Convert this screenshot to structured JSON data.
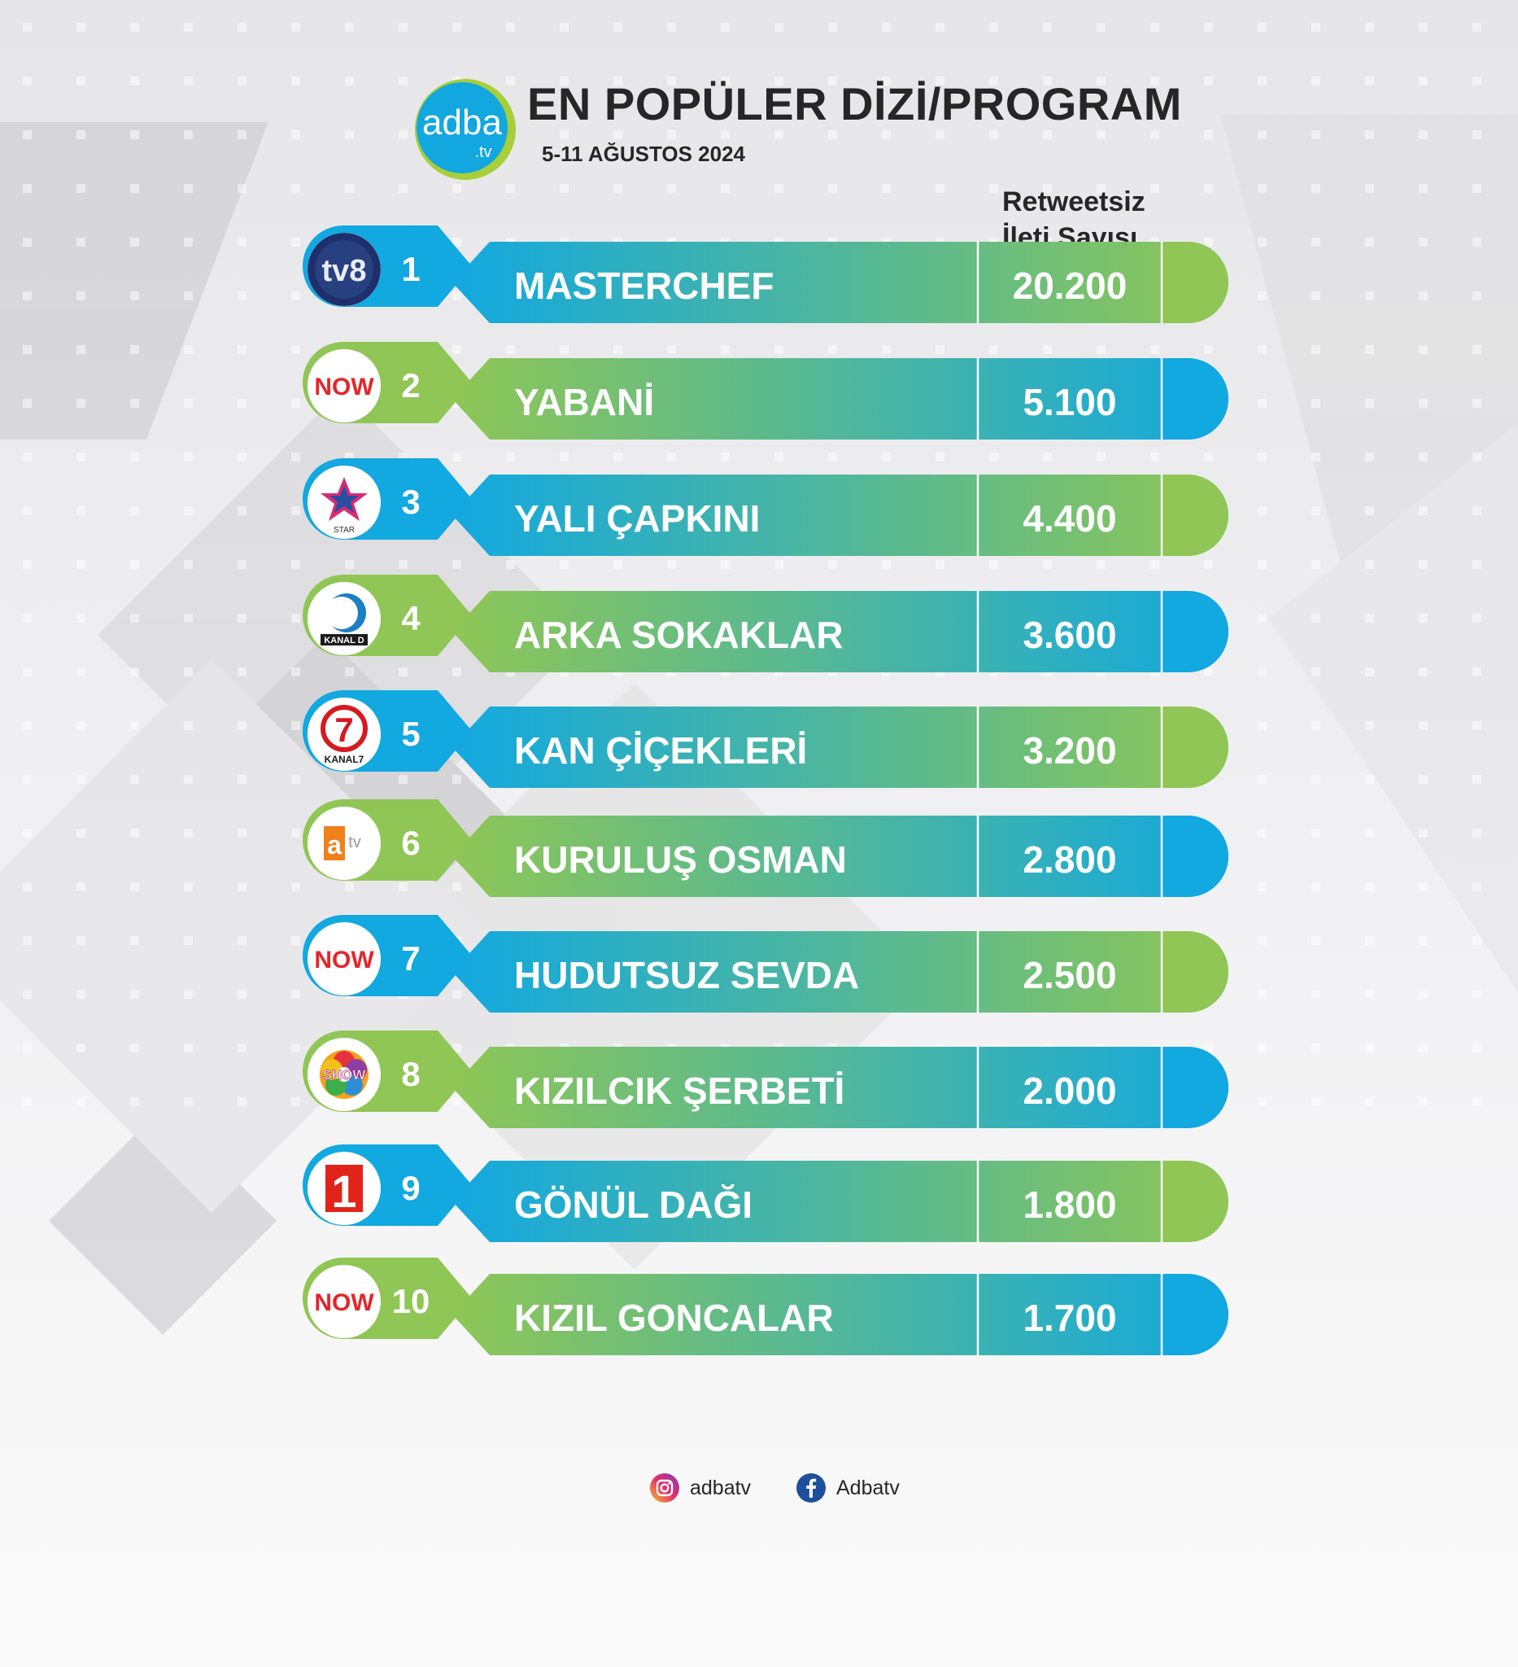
{
  "header": {
    "brand": "adba",
    "brand_suffix": ".tv",
    "title": "EN POPÜLER DİZİ/PROGRAM",
    "date": "5-11 AĞUSTOS 2024",
    "column_label_line1": "Retweetsiz",
    "column_label_line2": "İleti Sayısı"
  },
  "colors": {
    "blue": "#12a8e0",
    "green": "#8fc655",
    "brand_ring": "#a6cf3a"
  },
  "chart_data": {
    "type": "table",
    "title": "EN POPÜLER DİZİ/PROGRAM",
    "subtitle": "5-11 AĞUSTOS 2024",
    "columns": [
      "Retweetsiz İleti Sayısı"
    ],
    "rows": [
      {
        "rank": "1",
        "channel_logo": "tv8-logo",
        "channel_text": "TV8",
        "program": "MASTERCHEF",
        "value_label": "20.200",
        "value": 20200
      },
      {
        "rank": "2",
        "channel_logo": "now-logo",
        "channel_text": "NOW",
        "program": "YABANİ",
        "value_label": "5.100",
        "value": 5100
      },
      {
        "rank": "3",
        "channel_logo": "star-logo",
        "channel_text": "STAR",
        "program": "YALI ÇAPKINI",
        "value_label": "4.400",
        "value": 4400
      },
      {
        "rank": "4",
        "channel_logo": "kanald-logo",
        "channel_text": "KANAL D",
        "program": "ARKA SOKAKLAR",
        "value_label": "3.600",
        "value": 3600
      },
      {
        "rank": "5",
        "channel_logo": "kanal7-logo",
        "channel_text": "KANAL7",
        "program": "KAN ÇİÇEKLERİ",
        "value_label": "3.200",
        "value": 3200
      },
      {
        "rank": "6",
        "channel_logo": "atv-logo",
        "channel_text": "atv",
        "program": "KURULUŞ OSMAN",
        "value_label": "2.800",
        "value": 2800
      },
      {
        "rank": "7",
        "channel_logo": "now-logo",
        "channel_text": "NOW",
        "program": "HUDUTSUZ SEVDA",
        "value_label": "2.500",
        "value": 2500
      },
      {
        "rank": "8",
        "channel_logo": "show-logo",
        "channel_text": "SHOW",
        "program": "KIZILCIK ŞERBETİ",
        "value_label": "2.000",
        "value": 2000
      },
      {
        "rank": "9",
        "channel_logo": "trt1-logo",
        "channel_text": "1",
        "program": "GÖNÜL DAĞI",
        "value_label": "1.800",
        "value": 1800
      },
      {
        "rank": "10",
        "channel_logo": "now-logo",
        "channel_text": "NOW",
        "program": "KIZIL GONCALAR",
        "value_label": "1.700",
        "value": 1700
      }
    ]
  },
  "footer": {
    "instagram_icon": "instagram-icon",
    "instagram_handle": "adbatv",
    "facebook_icon": "facebook-icon",
    "facebook_handle": "Adbatv"
  }
}
